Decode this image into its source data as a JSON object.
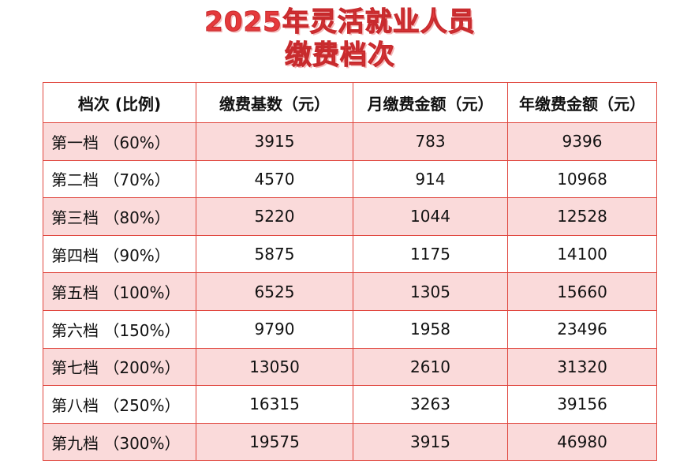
{
  "header": {
    "title_lines": [
      "2025年灵活就业人员",
      "缴费档次"
    ]
  },
  "table": {
    "columns": [
      "档次 (比例)",
      "缴费基数（元）",
      "月缴费金额（元）",
      "年缴费金额（元）"
    ],
    "rows": [
      [
        "第一档 （60%）",
        3915,
        783,
        9396
      ],
      [
        "第二档 （70%）",
        4570,
        914,
        10968
      ],
      [
        "第三档 （80%）",
        5220,
        1044,
        12528
      ],
      [
        "第四档 （90%）",
        5875,
        1175,
        14100
      ],
      [
        "第五档 （100%）",
        6525,
        1305,
        15660
      ],
      [
        "第六档 （150%）",
        9790,
        1958,
        23496
      ],
      [
        "第七档 （200%）",
        13050,
        2610,
        31320
      ],
      [
        "第八档 （250%）",
        16315,
        3263,
        39156
      ],
      [
        "第九档 （300%）",
        19575,
        3915,
        46980
      ]
    ]
  }
}
